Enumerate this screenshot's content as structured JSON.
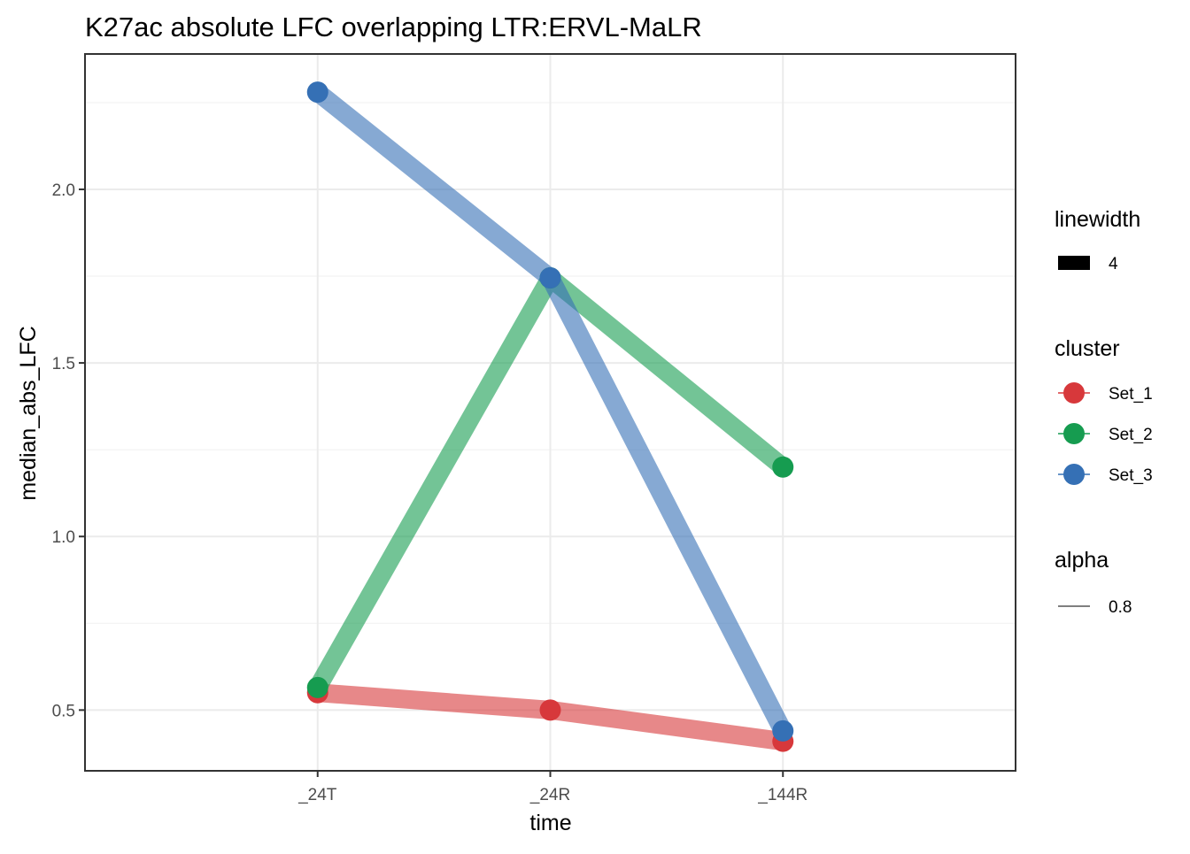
{
  "chart_data": {
    "type": "line",
    "title": "K27ac absolute LFC overlapping LTR:ERVL-MaLR",
    "xlabel": "time",
    "ylabel": "median_abs_LFC",
    "categories": [
      "_24T",
      "_24R",
      "_144R"
    ],
    "ylim": [
      0.325,
      2.39
    ],
    "yticks": [
      0.5,
      1.0,
      1.5,
      2.0
    ],
    "ytick_labels": [
      "0.5",
      "1.0",
      "1.5",
      "2.0"
    ],
    "grid": true,
    "legend_position": "right",
    "series": [
      {
        "name": "Set_1",
        "color": "#d7383b",
        "values": [
          0.55,
          0.5,
          0.41
        ]
      },
      {
        "name": "Set_2",
        "color": "#169c50",
        "values": [
          0.565,
          1.745,
          1.2
        ]
      },
      {
        "name": "Set_3",
        "color": "#3570b5",
        "values": [
          2.28,
          1.745,
          0.44
        ]
      }
    ],
    "line_alpha": 0.6,
    "legends": [
      {
        "title": "linewidth",
        "key": "filled-rect",
        "items": [
          "4"
        ]
      },
      {
        "title": "cluster",
        "key": "point-line",
        "items": [
          "Set_1",
          "Set_2",
          "Set_3"
        ]
      },
      {
        "title": "alpha",
        "key": "thin-line",
        "items": [
          "0.8"
        ]
      }
    ]
  }
}
